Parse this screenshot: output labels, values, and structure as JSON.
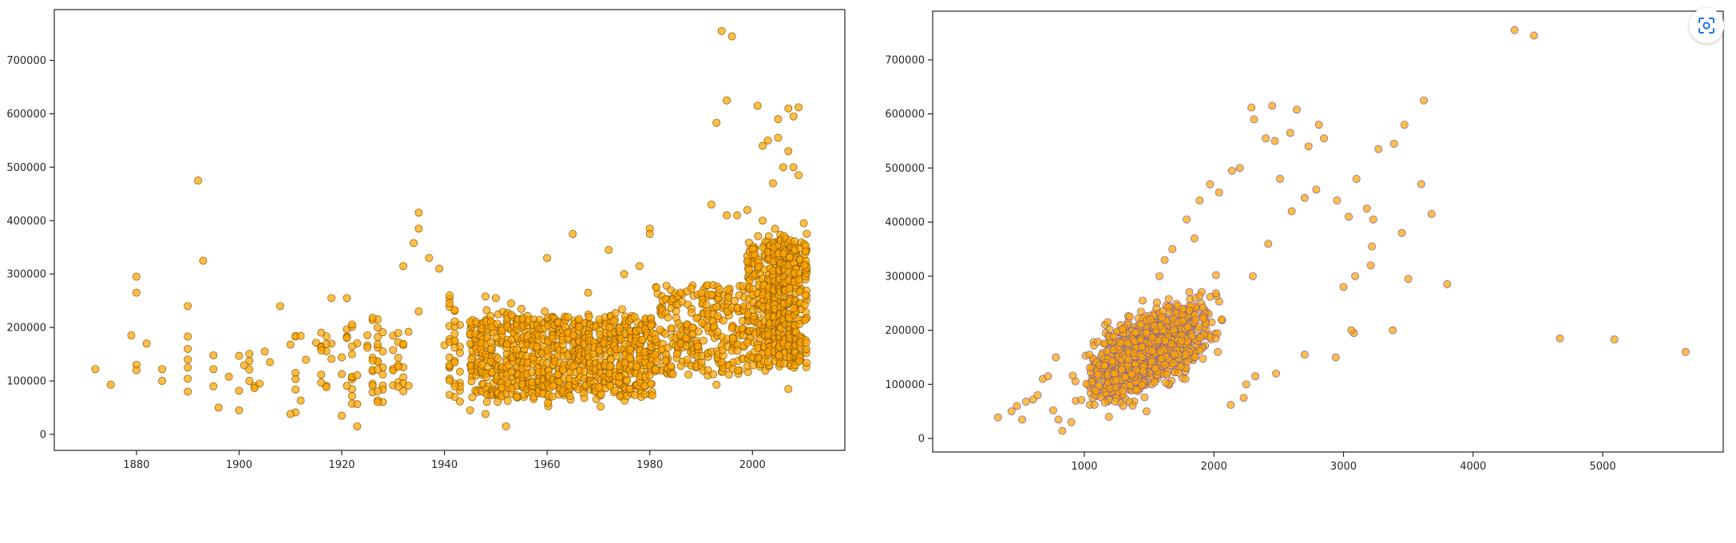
{
  "colors": {
    "marker_fill": "#ffa500",
    "marker_edge_left": "#8a5a00",
    "marker_edge_right": "#7b5fa0",
    "lens_icon": "#1a73e8"
  },
  "toolbar": {
    "lens_icon": "lens-scan-icon"
  },
  "chart_data": [
    {
      "type": "scatter",
      "title": "",
      "xlabel": "",
      "ylabel": "",
      "xlim": [
        1864,
        2018
      ],
      "ylim": [
        -30000,
        795000
      ],
      "xticks": [
        1880,
        1900,
        1920,
        1940,
        1960,
        1980,
        2000
      ],
      "yticks": [
        0,
        100000,
        200000,
        300000,
        400000,
        500000,
        600000,
        700000
      ],
      "grid": false,
      "series": [
        {
          "points": [
            [
              1872,
              122000
            ],
            [
              1875,
              93000
            ],
            [
              1880,
              295000
            ],
            [
              1880,
              265000
            ],
            [
              1880,
              130000
            ],
            [
              1880,
              120000
            ],
            [
              1879,
              185000
            ],
            [
              1882,
              170000
            ],
            [
              1885,
              100000
            ],
            [
              1885,
              122000
            ],
            [
              1890,
              240000
            ],
            [
              1890,
              183000
            ],
            [
              1890,
              160000
            ],
            [
              1890,
              140000
            ],
            [
              1890,
              125000
            ],
            [
              1890,
              104000
            ],
            [
              1890,
              80000
            ],
            [
              1892,
              475000
            ],
            [
              1893,
              325000
            ],
            [
              1895,
              148000
            ],
            [
              1895,
              122000
            ],
            [
              1895,
              90000
            ],
            [
              1896,
              50000
            ],
            [
              1898,
              108000
            ],
            [
              1908,
              240000
            ],
            [
              1906,
              135000
            ],
            [
              1905,
              155000
            ],
            [
              1904,
              95000
            ],
            [
              1902,
              100000
            ],
            [
              1918,
              255000
            ],
            [
              1921,
              255000
            ],
            [
              1932,
              315000
            ],
            [
              1934,
              358000
            ],
            [
              1935,
              415000
            ],
            [
              1935,
              385000
            ],
            [
              1937,
              330000
            ],
            [
              1935,
              230000
            ],
            [
              1939,
              310000
            ],
            [
              1941,
              260000
            ],
            [
              1941,
              245000
            ],
            [
              1948,
              258000
            ],
            [
              1950,
              255000
            ],
            [
              1953,
              245000
            ],
            [
              1955,
              235000
            ],
            [
              1960,
              330000
            ],
            [
              1965,
              375000
            ],
            [
              1968,
              265000
            ],
            [
              1972,
              345000
            ],
            [
              1975,
              300000
            ],
            [
              1978,
              315000
            ],
            [
              1980,
              385000
            ],
            [
              1980,
              375000
            ],
            [
              1945,
              45000
            ],
            [
              1948,
              38000
            ],
            [
              1952,
              15000
            ],
            [
              1923,
              15000
            ],
            [
              1920,
              35000
            ],
            [
              1910,
              38000
            ],
            [
              1900,
              45000
            ],
            [
              1993,
              93000
            ],
            [
              2007,
              85000
            ],
            [
              1992,
              430000
            ],
            [
              1995,
              410000
            ],
            [
              1997,
              410000
            ],
            [
              1993,
              583000
            ],
            [
              1995,
              625000
            ],
            [
              2001,
              615000
            ],
            [
              2005,
              590000
            ],
            [
              2008,
              595000
            ],
            [
              2009,
              612000
            ],
            [
              2007,
              610000
            ],
            [
              2002,
              540000
            ],
            [
              2003,
              550000
            ],
            [
              2005,
              555000
            ],
            [
              2007,
              530000
            ],
            [
              1994,
              755000
            ],
            [
              1996,
              745000
            ],
            [
              2004,
              470000
            ],
            [
              2006,
              500000
            ],
            [
              2008,
              500000
            ],
            [
              2009,
              485000
            ],
            [
              1999,
              420000
            ],
            [
              2002,
              400000
            ],
            [
              2010,
              395000
            ]
          ]
        }
      ]
    },
    {
      "type": "scatter",
      "title": "",
      "xlabel": "",
      "ylabel": "",
      "xlim": [
        -170,
        5930
      ],
      "ylim": [
        -25000,
        790000
      ],
      "xticks": [
        1000,
        2000,
        3000,
        4000,
        5000
      ],
      "yticks": [
        0,
        100000,
        200000,
        300000,
        400000,
        500000,
        600000,
        700000
      ],
      "grid": false,
      "series": [
        {
          "points": [
            [
              334,
              39000
            ],
            [
              438,
              50000
            ],
            [
              480,
              60000
            ],
            [
              520,
              35000
            ],
            [
              550,
              68000
            ],
            [
              605,
              72000
            ],
            [
              640,
              80000
            ],
            [
              680,
              110000
            ],
            [
              720,
              115000
            ],
            [
              760,
              52000
            ],
            [
              780,
              150000
            ],
            [
              800,
              35000
            ],
            [
              830,
              14000
            ],
            [
              900,
              30000
            ],
            [
              1040,
              155000
            ],
            [
              1090,
              88000
            ],
            [
              1160,
              210000
            ],
            [
              1190,
              40000
            ],
            [
              1450,
              255000
            ],
            [
              1480,
              50000
            ],
            [
              1580,
              300000
            ],
            [
              1680,
              350000
            ],
            [
              1790,
              405000
            ],
            [
              1890,
              440000
            ],
            [
              1970,
              470000
            ],
            [
              2040,
              455000
            ],
            [
              2140,
              495000
            ],
            [
              2200,
              500000
            ],
            [
              2290,
              612000
            ],
            [
              2310,
              590000
            ],
            [
              2400,
              555000
            ],
            [
              2450,
              615000
            ],
            [
              2470,
              550000
            ],
            [
              2590,
              565000
            ],
            [
              2640,
              608000
            ],
            [
              2730,
              540000
            ],
            [
              2810,
              580000
            ],
            [
              2850,
              555000
            ],
            [
              2300,
              300000
            ],
            [
              2420,
              360000
            ],
            [
              2510,
              480000
            ],
            [
              2600,
              420000
            ],
            [
              2700,
              445000
            ],
            [
              2790,
              460000
            ],
            [
              2950,
              440000
            ],
            [
              3040,
              410000
            ],
            [
              3100,
              480000
            ],
            [
              3180,
              425000
            ],
            [
              3230,
              405000
            ],
            [
              3220,
              355000
            ],
            [
              3270,
              535000
            ],
            [
              3390,
              545000
            ],
            [
              3470,
              580000
            ],
            [
              3600,
              470000
            ],
            [
              3620,
              625000
            ],
            [
              3680,
              415000
            ],
            [
              3450,
              380000
            ],
            [
              3500,
              295000
            ],
            [
              3800,
              285000
            ],
            [
              3210,
              320000
            ],
            [
              3090,
              300000
            ],
            [
              3000,
              280000
            ],
            [
              3080,
              195000
            ],
            [
              3060,
              200000
            ],
            [
              2940,
              150000
            ],
            [
              3380,
              200000
            ],
            [
              2250,
              100000
            ],
            [
              2230,
              75000
            ],
            [
              2130,
              62000
            ],
            [
              2320,
              115000
            ],
            [
              2480,
              120000
            ],
            [
              2700,
              155000
            ],
            [
              4320,
              755000
            ],
            [
              4470,
              745000
            ],
            [
              4670,
              185000
            ],
            [
              5090,
              183000
            ],
            [
              5640,
              160000
            ],
            [
              2030,
              160000
            ],
            [
              1780,
              110000
            ],
            [
              1400,
              90000
            ],
            [
              1300,
              60000
            ],
            [
              1180,
              215000
            ],
            [
              1620,
              330000
            ],
            [
              1850,
              370000
            ]
          ]
        }
      ]
    }
  ]
}
